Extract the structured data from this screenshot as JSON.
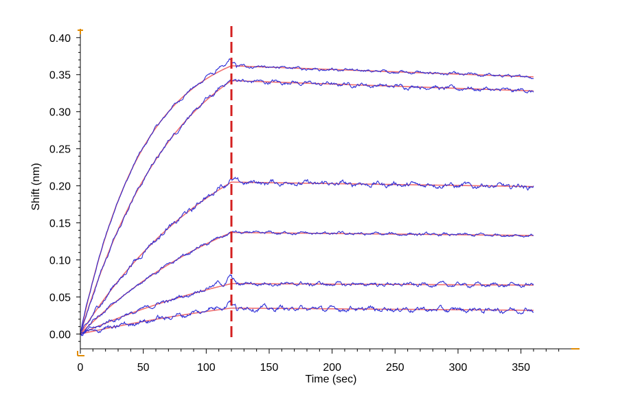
{
  "chart_data": {
    "type": "line",
    "title": "",
    "xlabel": "Time (sec)",
    "ylabel": "Shift (nm)",
    "xlim": [
      0,
      390
    ],
    "ylim": [
      -0.02,
      0.41
    ],
    "x_ticks": [
      0,
      50,
      100,
      150,
      200,
      250,
      300,
      350
    ],
    "y_ticks": [
      0.0,
      0.05,
      0.1,
      0.15,
      0.2,
      0.25,
      0.3,
      0.35,
      0.4
    ],
    "y_tick_labels": [
      "0.00",
      "0.05",
      "0.10",
      "0.15",
      "0.20",
      "0.25",
      "0.30",
      "0.35",
      "0.40"
    ],
    "x_tick_labels": [
      "0",
      "50",
      "100",
      "150",
      "200",
      "250",
      "300",
      "350"
    ],
    "dissociation_start": 120,
    "end_time": 360,
    "grid": false,
    "legend": "none",
    "colors": {
      "measured": "#2b2bd6",
      "fit": "#f07070",
      "marker": "#d42020",
      "axis_end": "#e08a00"
    },
    "series": [
      {
        "assoc_max": 0.362,
        "kobs": 0.02,
        "diss_end": 0.347,
        "jump": 0.01
      },
      {
        "assoc_max": 0.342,
        "kobs": 0.0132,
        "diss_end": 0.328,
        "jump": 0.002
      },
      {
        "assoc_max": 0.205,
        "kobs": 0.0082,
        "diss_end": 0.199,
        "jump": 0.005
      },
      {
        "assoc_max": 0.137,
        "kobs": 0.0072,
        "diss_end": 0.133,
        "jump": 0.0
      },
      {
        "assoc_max": 0.068,
        "kobs": 0.0055,
        "diss_end": 0.066,
        "jump": 0.01
      },
      {
        "assoc_max": 0.035,
        "kobs": 0.0045,
        "diss_end": 0.032,
        "jump": 0.01
      }
    ]
  }
}
